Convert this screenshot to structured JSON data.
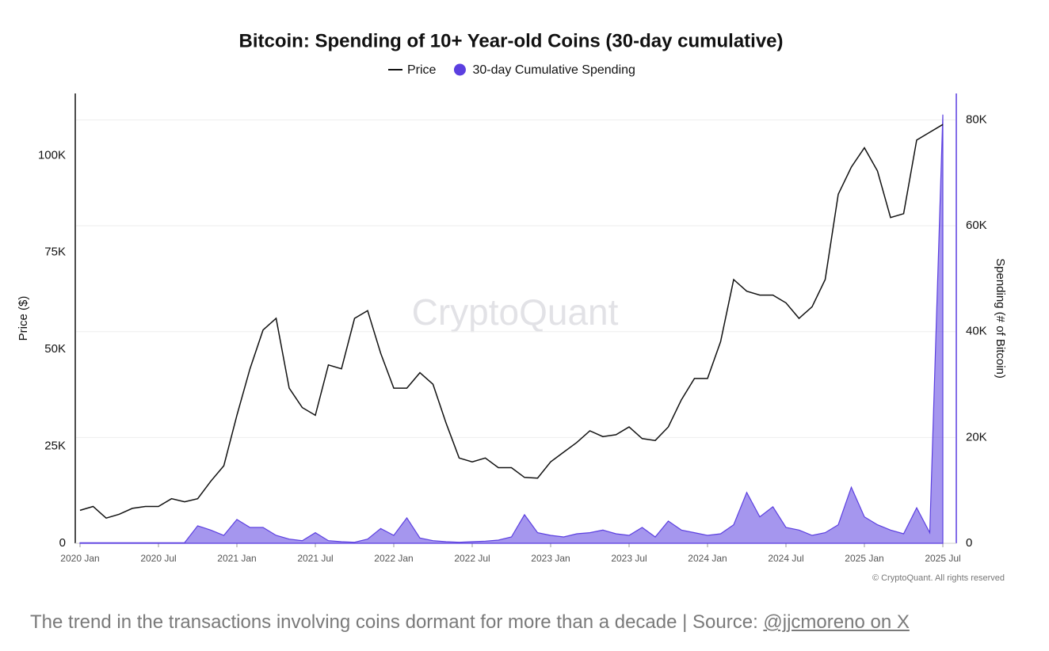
{
  "chart_data": {
    "type": "line",
    "title": "Bitcoin: Spending of 10+ Year-old Coins (30-day cumulative)",
    "ylabel": "Price ($)",
    "y2label": "Spending (# of Bitcoin)",
    "watermark": "CryptoQuant",
    "copyright": "© CryptoQuant. All rights reserved",
    "x": [
      "2020-01",
      "2020-02",
      "2020-03",
      "2020-04",
      "2020-05",
      "2020-06",
      "2020-07",
      "2020-08",
      "2020-09",
      "2020-10",
      "2020-11",
      "2020-12",
      "2021-01",
      "2021-02",
      "2021-03",
      "2021-04",
      "2021-05",
      "2021-06",
      "2021-07",
      "2021-08",
      "2021-09",
      "2021-10",
      "2021-11",
      "2021-12",
      "2022-01",
      "2022-02",
      "2022-03",
      "2022-04",
      "2022-05",
      "2022-06",
      "2022-07",
      "2022-08",
      "2022-09",
      "2022-10",
      "2022-11",
      "2022-12",
      "2023-01",
      "2023-02",
      "2023-03",
      "2023-04",
      "2023-05",
      "2023-06",
      "2023-07",
      "2023-08",
      "2023-09",
      "2023-10",
      "2023-11",
      "2023-12",
      "2024-01",
      "2024-02",
      "2024-03",
      "2024-04",
      "2024-05",
      "2024-06",
      "2024-07",
      "2024-08",
      "2024-09",
      "2024-10",
      "2024-11",
      "2024-12",
      "2025-01",
      "2025-02",
      "2025-03",
      "2025-04",
      "2025-05",
      "2025-06",
      "2025-07"
    ],
    "xlim": [
      "2020-01",
      "2025-07"
    ],
    "xticks": [
      {
        "value": "2020-01",
        "label": "2020 Jan"
      },
      {
        "value": "2020-07",
        "label": "2020 Jul"
      },
      {
        "value": "2021-01",
        "label": "2021 Jan"
      },
      {
        "value": "2021-07",
        "label": "2021 Jul"
      },
      {
        "value": "2022-01",
        "label": "2022 Jan"
      },
      {
        "value": "2022-07",
        "label": "2022 Jul"
      },
      {
        "value": "2023-01",
        "label": "2023 Jan"
      },
      {
        "value": "2023-07",
        "label": "2023 Jul"
      },
      {
        "value": "2024-01",
        "label": "2024 Jan"
      },
      {
        "value": "2024-07",
        "label": "2024 Jul"
      },
      {
        "value": "2025-01",
        "label": "2025 Jan"
      },
      {
        "value": "2025-07",
        "label": "2025 Jul"
      }
    ],
    "ylim": [
      0,
      116000
    ],
    "yticks": [
      0,
      {
        "value": 25000,
        "label": "25K"
      },
      {
        "value": 50000,
        "label": "50K"
      },
      {
        "value": 75000,
        "label": "75K"
      },
      {
        "value": 100000,
        "label": "100K"
      }
    ],
    "y2lim": [
      0,
      85000
    ],
    "y2ticks": [
      0,
      {
        "value": 20000,
        "label": "20K"
      },
      {
        "value": 40000,
        "label": "40K"
      },
      {
        "value": 60000,
        "label": "60K"
      },
      {
        "value": 80000,
        "label": "80K"
      }
    ],
    "grid": true,
    "series": [
      {
        "name": "Price",
        "color": "#111111",
        "values": [
          8500,
          9500,
          6500,
          7500,
          9000,
          9500,
          9500,
          11500,
          10700,
          11500,
          16000,
          20000,
          33000,
          45000,
          55000,
          58000,
          40000,
          35000,
          33000,
          46000,
          45000,
          58000,
          60000,
          49000,
          40000,
          40000,
          44000,
          41000,
          31000,
          22000,
          21000,
          22000,
          19500,
          19500,
          17000,
          16800,
          21000,
          23500,
          26000,
          29000,
          27500,
          28000,
          30000,
          27000,
          26500,
          30000,
          37000,
          42500,
          42500,
          52000,
          68000,
          65000,
          64000,
          64000,
          62000,
          58000,
          61000,
          68000,
          90000,
          97000,
          102000,
          96000,
          84000,
          85000,
          104000,
          106000,
          108000
        ]
      },
      {
        "name": "30-day Cumulative Spending",
        "color": "#5b3fe0",
        "axis": "y2",
        "values": [
          100,
          100,
          100,
          100,
          100,
          100,
          100,
          100,
          100,
          3300,
          2500,
          1500,
          4500,
          3000,
          3000,
          1500,
          800,
          500,
          2000,
          500,
          300,
          200,
          800,
          2800,
          1500,
          4800,
          1000,
          500,
          300,
          200,
          300,
          400,
          600,
          1200,
          5400,
          2000,
          1500,
          1200,
          1800,
          2000,
          2500,
          1800,
          1500,
          3000,
          1200,
          4200,
          2500,
          2000,
          1500,
          1800,
          3500,
          9600,
          5000,
          6900,
          3000,
          2500,
          1500,
          2000,
          3500,
          10600,
          5000,
          3500,
          2500,
          1800,
          6700,
          2000,
          81000
        ]
      }
    ]
  },
  "caption": {
    "text": "The trend in the transactions involving coins dormant for more than a decade | Source: ",
    "source_link": "@jjcmoreno on X"
  }
}
